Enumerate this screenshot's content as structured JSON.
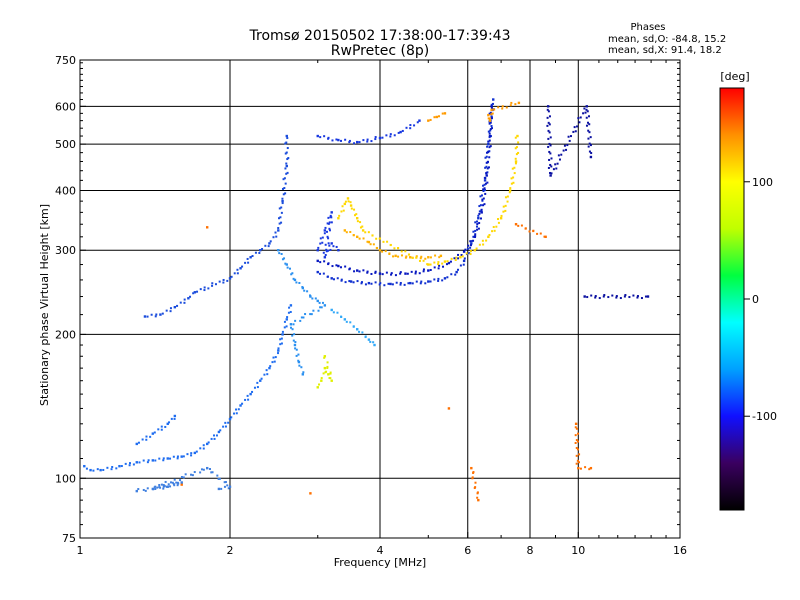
{
  "header": {
    "title": "Tromsø 20150502 17:38:00-17:39:43",
    "subtitle": "RwPretec (8p)",
    "stats_title": "Phases",
    "stats_o": "mean, sd,O:  -84.8, 15.2",
    "stats_x": "mean, sd,X:  91.4, 18.2"
  },
  "colorbar": {
    "label": "[deg]",
    "ticks": [
      "100",
      "0",
      "-100"
    ],
    "tick_values": [
      100,
      0,
      -100
    ],
    "range": [
      -180,
      180
    ],
    "colors": [
      "#000000",
      "#3a0060",
      "#1010ff",
      "#00a0ff",
      "#00ffff",
      "#00ff40",
      "#c0ff00",
      "#ffff00",
      "#ff9000",
      "#ff0000"
    ]
  },
  "chart_data": {
    "type": "scatter",
    "xlabel": "Frequency [MHz]",
    "ylabel": "Stationary phase Virtual Height [km]",
    "xscale": "log",
    "yscale": "log",
    "xlim": [
      1,
      16
    ],
    "ylim": [
      75,
      750
    ],
    "xticks": [
      1,
      2,
      4,
      6,
      8,
      10,
      16
    ],
    "xtick_labels": [
      "1",
      "2",
      "4",
      "6",
      "8",
      "10",
      "16"
    ],
    "yticks": [
      75,
      100,
      200,
      300,
      400,
      500,
      600,
      750
    ],
    "ytick_labels": [
      "75",
      "100",
      "200",
      "300",
      "400",
      "500",
      "600",
      "750"
    ],
    "grid": true,
    "series": [
      {
        "phase": -100,
        "color": "#1e6cf0",
        "points": [
          [
            1.02,
            106
          ],
          [
            1.05,
            104
          ],
          [
            1.1,
            104
          ],
          [
            1.2,
            106
          ],
          [
            1.3,
            108
          ],
          [
            1.4,
            109
          ],
          [
            1.5,
            110
          ],
          [
            1.6,
            111
          ],
          [
            1.7,
            113
          ],
          [
            1.8,
            118
          ],
          [
            1.9,
            125
          ],
          [
            2.0,
            133
          ],
          [
            2.1,
            142
          ],
          [
            2.2,
            150
          ],
          [
            2.3,
            160
          ],
          [
            2.4,
            170
          ],
          [
            2.5,
            185
          ],
          [
            2.55,
            200
          ],
          [
            2.6,
            215
          ],
          [
            2.65,
            230
          ],
          [
            1.3,
            118
          ],
          [
            1.4,
            124
          ],
          [
            1.5,
            130
          ],
          [
            1.55,
            135
          ]
        ]
      },
      {
        "phase": -110,
        "color": "#1a4cdc",
        "points": [
          [
            1.35,
            218
          ],
          [
            1.45,
            220
          ],
          [
            1.55,
            228
          ],
          [
            1.65,
            238
          ],
          [
            1.7,
            245
          ],
          [
            2.0,
            262
          ],
          [
            2.1,
            275
          ],
          [
            2.2,
            290
          ],
          [
            2.3,
            300
          ],
          [
            2.4,
            310
          ],
          [
            2.5,
            330
          ],
          [
            2.55,
            380
          ],
          [
            2.6,
            450
          ],
          [
            2.6,
            520
          ]
        ]
      },
      {
        "phase": -95,
        "color": "#2a90f0",
        "points": [
          [
            2.5,
            300
          ],
          [
            2.6,
            280
          ],
          [
            2.7,
            260
          ],
          [
            2.8,
            250
          ],
          [
            2.9,
            240
          ],
          [
            3.0,
            235
          ],
          [
            3.1,
            230
          ],
          [
            2.65,
            210
          ],
          [
            2.7,
            190
          ],
          [
            2.75,
            175
          ],
          [
            2.8,
            165
          ]
        ]
      },
      {
        "phase": -90,
        "color": "#30a8f8",
        "points": [
          [
            3.2,
            225
          ],
          [
            3.4,
            215
          ],
          [
            3.6,
            205
          ],
          [
            3.8,
            195
          ],
          [
            3.9,
            190
          ]
        ]
      },
      {
        "phase": -120,
        "color": "#1030d0",
        "points": [
          [
            3.0,
            270
          ],
          [
            3.2,
            262
          ],
          [
            3.5,
            258
          ],
          [
            3.8,
            256
          ],
          [
            4.2,
            255
          ],
          [
            4.6,
            256
          ],
          [
            5.0,
            258
          ],
          [
            5.4,
            262
          ],
          [
            5.7,
            270
          ],
          [
            5.9,
            285
          ],
          [
            6.1,
            310
          ],
          [
            6.3,
            350
          ],
          [
            6.5,
            420
          ],
          [
            6.6,
            500
          ],
          [
            6.7,
            570
          ],
          [
            6.75,
            620
          ]
        ]
      },
      {
        "phase": -125,
        "color": "#0818c0",
        "points": [
          [
            3.0,
            285
          ],
          [
            3.3,
            278
          ],
          [
            3.6,
            272
          ],
          [
            4.0,
            268
          ],
          [
            4.5,
            268
          ],
          [
            5.0,
            272
          ],
          [
            5.5,
            282
          ],
          [
            5.9,
            298
          ],
          [
            6.2,
            320
          ],
          [
            6.4,
            360
          ],
          [
            6.55,
            430
          ],
          [
            6.65,
            520
          ],
          [
            6.7,
            600
          ]
        ]
      },
      {
        "phase": -115,
        "color": "#1838e0",
        "points": [
          [
            3.0,
            300
          ],
          [
            3.1,
            330
          ],
          [
            3.2,
            360
          ],
          [
            3.1,
            290
          ],
          [
            3.2,
            310
          ],
          [
            3.3,
            300
          ],
          [
            3.0,
            520
          ],
          [
            3.3,
            510
          ],
          [
            3.6,
            505
          ],
          [
            4.0,
            515
          ],
          [
            4.4,
            530
          ],
          [
            4.8,
            560
          ]
        ]
      },
      {
        "phase": 120,
        "color": "#ffb000",
        "points": [
          [
            3.4,
            330
          ],
          [
            3.6,
            320
          ],
          [
            3.8,
            312
          ],
          [
            4.0,
            300
          ],
          [
            4.3,
            292
          ],
          [
            4.6,
            290
          ],
          [
            5.0,
            290
          ],
          [
            5.3,
            292
          ]
        ]
      },
      {
        "phase": 110,
        "color": "#ffd800",
        "points": [
          [
            3.3,
            350
          ],
          [
            3.4,
            375
          ],
          [
            3.45,
            385
          ],
          [
            3.5,
            372
          ],
          [
            3.6,
            350
          ],
          [
            3.7,
            330
          ],
          [
            5.0,
            280
          ],
          [
            5.4,
            284
          ],
          [
            5.8,
            290
          ],
          [
            6.2,
            300
          ],
          [
            6.6,
            320
          ],
          [
            7.0,
            350
          ],
          [
            7.3,
            400
          ],
          [
            7.5,
            460
          ],
          [
            7.55,
            520
          ]
        ]
      },
      {
        "phase": 90,
        "color": "#e0f000",
        "points": [
          [
            3.0,
            155
          ],
          [
            3.05,
            160
          ],
          [
            3.1,
            170
          ],
          [
            3.15,
            165
          ],
          [
            3.2,
            160
          ],
          [
            3.1,
            180
          ]
        ]
      },
      {
        "phase": 130,
        "color": "#ff9a00",
        "points": [
          [
            6.6,
            575
          ],
          [
            6.65,
            560
          ],
          [
            6.7,
            590
          ],
          [
            7.6,
            610
          ],
          [
            5.0,
            560
          ],
          [
            5.2,
            570
          ],
          [
            5.4,
            580
          ]
        ]
      },
      {
        "phase": -130,
        "color": "#0a10a0",
        "points": [
          [
            8.7,
            600
          ],
          [
            8.8,
            430
          ],
          [
            10.4,
            600
          ],
          [
            10.6,
            470
          ],
          [
            10.3,
            240
          ],
          [
            13.8,
            240
          ]
        ]
      },
      {
        "phase": 140,
        "color": "#ff7000",
        "points": [
          [
            1.6,
            97
          ],
          [
            2.9,
            93
          ],
          [
            6.3,
            90
          ],
          [
            6.1,
            105
          ],
          [
            7.5,
            340
          ],
          [
            8.6,
            320
          ],
          [
            9.9,
            130
          ],
          [
            10.0,
            105
          ],
          [
            10.6,
            105
          ],
          [
            1.8,
            335
          ],
          [
            5.5,
            140
          ]
        ]
      },
      {
        "phase": -80,
        "color": "#4080e0",
        "points": [
          [
            1.9,
            95
          ],
          [
            2.0,
            96
          ],
          [
            1.8,
            105
          ],
          [
            1.4,
            95
          ],
          [
            1.5,
            96
          ],
          [
            1.6,
            98
          ],
          [
            1.3,
            94
          ]
        ]
      }
    ]
  }
}
